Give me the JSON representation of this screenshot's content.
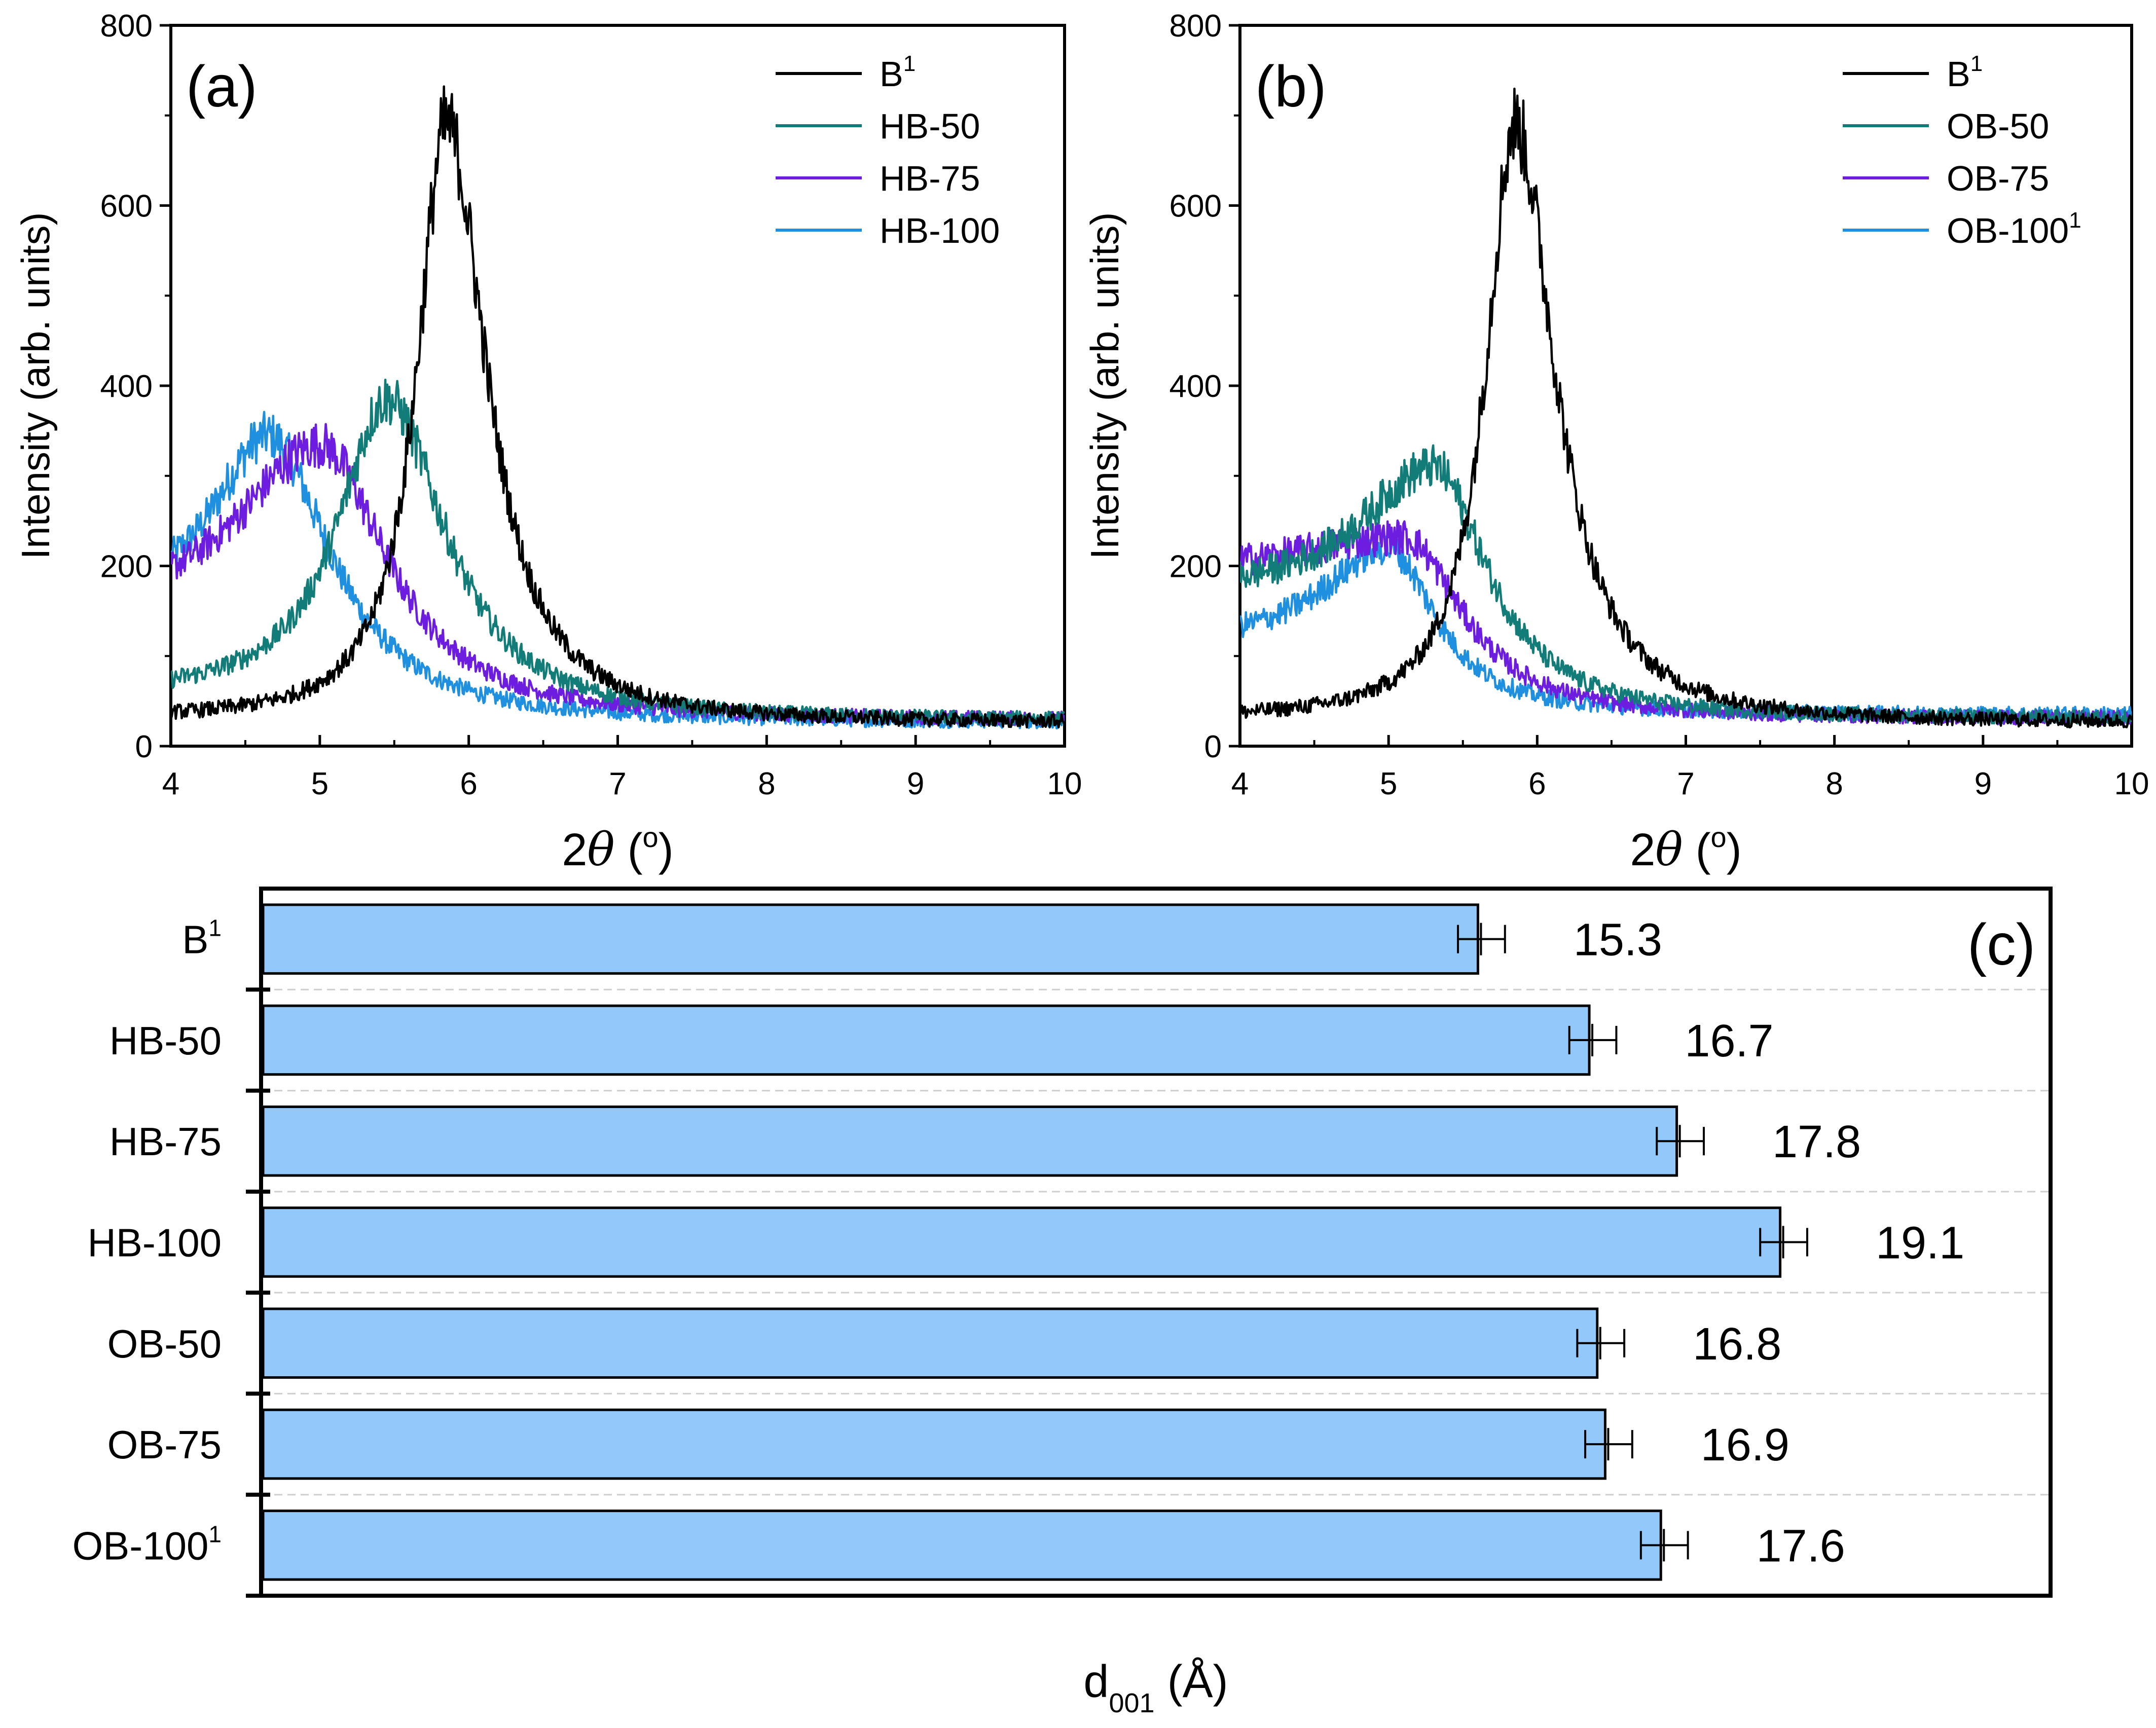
{
  "colors": {
    "B1": "#000000",
    "HB-50": "#127c78",
    "HB-75": "#6d1de0",
    "HB-100": "#1f8fe0",
    "OB-50": "#127c78",
    "OB-75": "#6d1de0",
    "OB-100": "#1f8fe0",
    "bar_fill": "#93c8fa",
    "bar_stroke": "#000000",
    "grid": "#cfcfcf"
  },
  "chart_data": [
    {
      "panel": "(a)",
      "type": "line",
      "title": "",
      "xlabel_symbol": "2θ",
      "xlabel_unit": "(°)",
      "xlabel_prefix": "2",
      "xlabel_theta": "θ",
      "xlabel_open": " (",
      "xlabel_degree": "o",
      "xlabel_close": ")",
      "ylabel": "Intensity (arb. units)",
      "xlim": [
        4,
        10
      ],
      "ylim": [
        0,
        800
      ],
      "xticks": [
        "4",
        "5",
        "6",
        "7",
        "8",
        "9",
        "10"
      ],
      "yticks": [
        "0",
        "200",
        "400",
        "600",
        "800"
      ],
      "legend_position": "top-right",
      "series": [
        {
          "key": "B1",
          "name_main": "B",
          "name_sup": "1",
          "peak_x": 5.85,
          "peak_y": 690,
          "width_left": 0.38,
          "width_right": 0.52,
          "base_left": 30,
          "base_right": 25,
          "shape_tail": 0.55
        },
        {
          "key": "HB-50",
          "name_main": "HB-50",
          "name_sup": "",
          "peak_x": 5.45,
          "peak_y": 385,
          "width_left": 0.62,
          "width_right": 0.75,
          "base_left": 55,
          "base_right": 28,
          "shape_tail": 0.5
        },
        {
          "key": "HB-75",
          "name_main": "HB-75",
          "name_sup": "",
          "peak_x": 5.0,
          "peak_y": 335,
          "width_left": 1.05,
          "width_right": 0.85,
          "base_left": 140,
          "base_right": 28,
          "shape_tail": 0.45
        },
        {
          "key": "HB-100",
          "name_main": "HB-100",
          "name_sup": "",
          "peak_x": 4.65,
          "peak_y": 345,
          "width_left": 0.7,
          "width_right": 0.8,
          "base_left": 150,
          "base_right": 25,
          "shape_tail": 0.45
        }
      ]
    },
    {
      "panel": "(b)",
      "type": "line",
      "title": "",
      "xlabel_prefix": "2",
      "xlabel_theta": "θ",
      "xlabel_open": " (",
      "xlabel_degree": "o",
      "xlabel_close": ")",
      "ylabel": "Intensity (arb. units)",
      "xlim": [
        4,
        10
      ],
      "ylim": [
        0,
        800
      ],
      "xticks": [
        "4",
        "5",
        "6",
        "7",
        "8",
        "9",
        "10"
      ],
      "yticks": [
        "0",
        "200",
        "400",
        "600",
        "800"
      ],
      "legend_position": "top-right",
      "series": [
        {
          "key": "B1",
          "name_main": "B",
          "name_sup": "1",
          "peak_x": 5.85,
          "peak_y": 690,
          "width_left": 0.38,
          "width_right": 0.52,
          "base_left": 30,
          "base_right": 25,
          "shape_tail": 0.55
        },
        {
          "key": "OB-50",
          "name_main": "OB-50",
          "name_sup": "",
          "peak_x": 5.3,
          "peak_y": 310,
          "width_left": 0.95,
          "width_right": 0.7,
          "base_left": 165,
          "base_right": 30,
          "shape_tail": 0.5
        },
        {
          "key": "OB-75",
          "name_main": "OB-75",
          "name_sup": "",
          "peak_x": 5.1,
          "peak_y": 232,
          "width_left": 1.6,
          "width_right": 0.75,
          "base_left": 185,
          "base_right": 30,
          "shape_tail": 0.5
        },
        {
          "key": "OB-100",
          "name_main": "OB-100",
          "name_sup": "1",
          "peak_x": 5.0,
          "peak_y": 220,
          "width_left": 0.85,
          "width_right": 0.6,
          "base_left": 110,
          "base_right": 35,
          "shape_tail": 0.5
        }
      ]
    },
    {
      "panel": "(c)",
      "type": "bar",
      "orientation": "horizontal",
      "xlabel_main": "d",
      "xlabel_sub": "001",
      "xlabel_unit": " (Å)",
      "xlim": [
        0,
        22.5
      ],
      "categories": [
        {
          "main": "B",
          "sup": "1"
        },
        {
          "main": "HB-50",
          "sup": ""
        },
        {
          "main": "HB-75",
          "sup": ""
        },
        {
          "main": "HB-100",
          "sup": ""
        },
        {
          "main": "OB-50",
          "sup": ""
        },
        {
          "main": "OB-75",
          "sup": ""
        },
        {
          "main": "OB-100",
          "sup": "1"
        }
      ],
      "values": [
        15.3,
        16.7,
        17.8,
        19.1,
        16.8,
        16.9,
        17.6
      ],
      "value_labels": [
        "15.3",
        "16.7",
        "17.8",
        "19.1",
        "16.8",
        "16.9",
        "17.6"
      ],
      "errors": [
        0.2,
        0.2,
        0.2,
        0.2,
        0.2,
        0.2,
        0.2
      ]
    }
  ]
}
